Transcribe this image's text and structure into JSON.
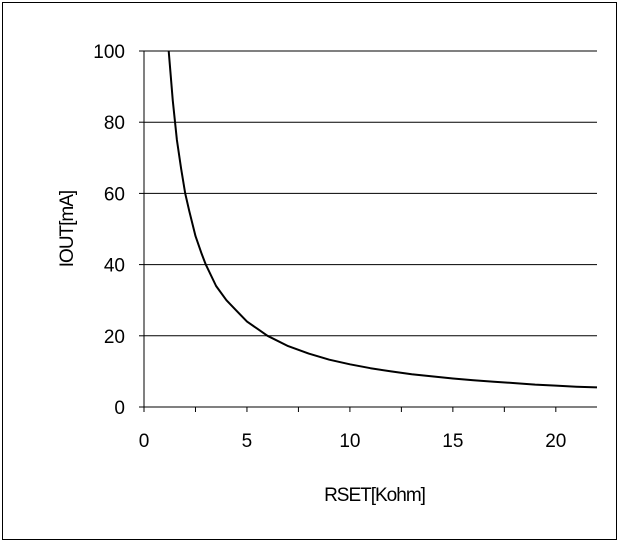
{
  "chart_data": {
    "type": "line",
    "xlabel": "RSET[Kohm]",
    "ylabel": "IOUT[mA]",
    "xlim": [
      0,
      22
    ],
    "ylim": [
      0,
      100
    ],
    "x_ticks": [
      0,
      5,
      10,
      15,
      20
    ],
    "y_ticks": [
      0,
      20,
      40,
      60,
      80,
      100
    ],
    "grid": "horizontal",
    "legend": "none",
    "series": [
      {
        "color": "#000000",
        "x": [
          1.2,
          1.4,
          1.6,
          1.8,
          2.0,
          2.2,
          2.5,
          2.8,
          3.0,
          3.5,
          4.0,
          4.5,
          5.0,
          5.5,
          6.0,
          7.0,
          8.0,
          9.0,
          10.0,
          11.0,
          12.0,
          13.0,
          14.0,
          15.0,
          16.0,
          17.0,
          18.0,
          19.0,
          20.0,
          21.0,
          22.0
        ],
        "y": [
          100,
          86,
          75,
          67,
          60,
          55,
          48,
          43,
          40,
          34,
          30,
          27,
          24,
          22,
          20,
          17.1,
          15,
          13.3,
          12,
          10.9,
          10,
          9.2,
          8.6,
          8,
          7.5,
          7.1,
          6.7,
          6.3,
          6,
          5.7,
          5.5
        ]
      }
    ]
  }
}
